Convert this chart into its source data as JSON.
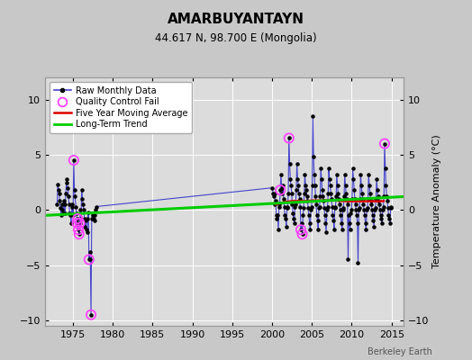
{
  "title": "AMARBUYANTAYN",
  "subtitle": "44.617 N, 98.700 E (Mongolia)",
  "ylabel": "Temperature Anomaly (°C)",
  "credit": "Berkeley Earth",
  "xlim": [
    1971.5,
    2016.5
  ],
  "ylim": [
    -10.5,
    12
  ],
  "yticks": [
    -10,
    -5,
    0,
    5,
    10
  ],
  "xticks": [
    1975,
    1980,
    1985,
    1990,
    1995,
    2000,
    2005,
    2010,
    2015
  ],
  "bg_color": "#c8c8c8",
  "plot_bg_color": "#dcdcdc",
  "grid_color": "#ffffff",
  "raw_color": "#4444cc",
  "dot_color": "#000000",
  "qc_color": "#ff44ff",
  "moving_avg_color": "#dd0000",
  "trend_color": "#00cc00",
  "raw_data": [
    [
      1973.04,
      0.5
    ],
    [
      1973.12,
      2.3
    ],
    [
      1973.21,
      1.8
    ],
    [
      1973.29,
      1.5
    ],
    [
      1973.38,
      0.8
    ],
    [
      1973.46,
      0.2
    ],
    [
      1973.54,
      -0.5
    ],
    [
      1973.62,
      0.5
    ],
    [
      1973.71,
      0.0
    ],
    [
      1973.79,
      -0.3
    ],
    [
      1973.88,
      0.8
    ],
    [
      1973.96,
      0.5
    ],
    [
      1974.04,
      -0.3
    ],
    [
      1974.12,
      1.5
    ],
    [
      1974.21,
      2.5
    ],
    [
      1974.29,
      2.8
    ],
    [
      1974.38,
      2.0
    ],
    [
      1974.46,
      1.2
    ],
    [
      1974.54,
      0.5
    ],
    [
      1974.62,
      -0.3
    ],
    [
      1974.71,
      -0.5
    ],
    [
      1974.79,
      -1.2
    ],
    [
      1974.88,
      0.3
    ],
    [
      1974.96,
      0.5
    ],
    [
      1975.04,
      -0.5
    ],
    [
      1975.12,
      4.5
    ],
    [
      1975.21,
      1.8
    ],
    [
      1975.29,
      1.2
    ],
    [
      1975.38,
      0.3
    ],
    [
      1975.46,
      -0.3
    ],
    [
      1975.54,
      -1.2
    ],
    [
      1975.62,
      -0.8
    ],
    [
      1975.71,
      -1.8
    ],
    [
      1975.79,
      -2.2
    ],
    [
      1975.88,
      -1.2
    ],
    [
      1975.96,
      0.0
    ],
    [
      1976.04,
      -0.8
    ],
    [
      1976.12,
      1.8
    ],
    [
      1976.21,
      1.0
    ],
    [
      1976.29,
      0.5
    ],
    [
      1976.38,
      0.0
    ],
    [
      1976.46,
      -0.8
    ],
    [
      1976.54,
      -1.5
    ],
    [
      1976.62,
      -1.0
    ],
    [
      1976.71,
      -1.8
    ],
    [
      1976.79,
      -2.0
    ],
    [
      1976.88,
      -0.8
    ],
    [
      1976.96,
      -0.2
    ],
    [
      1977.04,
      -4.5
    ],
    [
      1977.12,
      -3.8
    ],
    [
      1977.21,
      -4.5
    ],
    [
      1977.29,
      -9.5
    ],
    [
      1977.38,
      -0.8
    ],
    [
      1977.46,
      -0.5
    ],
    [
      1977.54,
      -0.3
    ],
    [
      1977.62,
      -0.8
    ],
    [
      1977.71,
      -1.0
    ],
    [
      1977.79,
      -0.5
    ],
    [
      1977.88,
      0.0
    ],
    [
      1977.96,
      0.3
    ],
    [
      2000.04,
      2.0
    ],
    [
      2000.12,
      1.5
    ],
    [
      2000.21,
      1.2
    ],
    [
      2000.29,
      1.5
    ],
    [
      2000.38,
      0.5
    ],
    [
      2000.46,
      0.8
    ],
    [
      2000.54,
      -0.5
    ],
    [
      2000.62,
      -0.8
    ],
    [
      2000.71,
      -0.5
    ],
    [
      2000.79,
      -1.8
    ],
    [
      2000.88,
      0.3
    ],
    [
      2000.96,
      0.5
    ],
    [
      2001.04,
      1.8
    ],
    [
      2001.12,
      3.2
    ],
    [
      2001.21,
      2.0
    ],
    [
      2001.29,
      1.5
    ],
    [
      2001.38,
      2.2
    ],
    [
      2001.46,
      1.0
    ],
    [
      2001.54,
      0.3
    ],
    [
      2001.62,
      -0.5
    ],
    [
      2001.71,
      -0.8
    ],
    [
      2001.79,
      -1.5
    ],
    [
      2001.88,
      0.2
    ],
    [
      2001.96,
      0.3
    ],
    [
      2002.04,
      1.5
    ],
    [
      2002.12,
      6.5
    ],
    [
      2002.21,
      4.2
    ],
    [
      2002.29,
      2.8
    ],
    [
      2002.38,
      2.2
    ],
    [
      2002.46,
      1.5
    ],
    [
      2002.54,
      0.5
    ],
    [
      2002.62,
      -0.3
    ],
    [
      2002.71,
      -0.8
    ],
    [
      2002.79,
      -1.2
    ],
    [
      2002.88,
      0.3
    ],
    [
      2002.96,
      0.5
    ],
    [
      2003.04,
      1.8
    ],
    [
      2003.12,
      4.2
    ],
    [
      2003.21,
      2.8
    ],
    [
      2003.29,
      2.2
    ],
    [
      2003.38,
      1.5
    ],
    [
      2003.46,
      1.0
    ],
    [
      2003.54,
      0.3
    ],
    [
      2003.62,
      -1.8
    ],
    [
      2003.71,
      -1.2
    ],
    [
      2003.79,
      -2.2
    ],
    [
      2003.88,
      -0.5
    ],
    [
      2003.96,
      0.2
    ],
    [
      2004.04,
      1.5
    ],
    [
      2004.12,
      3.2
    ],
    [
      2004.21,
      2.2
    ],
    [
      2004.29,
      1.8
    ],
    [
      2004.38,
      1.2
    ],
    [
      2004.46,
      0.8
    ],
    [
      2004.54,
      0.2
    ],
    [
      2004.62,
      -0.5
    ],
    [
      2004.71,
      -1.2
    ],
    [
      2004.79,
      -1.8
    ],
    [
      2004.88,
      0.0
    ],
    [
      2004.96,
      0.3
    ],
    [
      2005.04,
      2.2
    ],
    [
      2005.12,
      8.5
    ],
    [
      2005.21,
      4.8
    ],
    [
      2005.29,
      3.2
    ],
    [
      2005.38,
      2.2
    ],
    [
      2005.46,
      1.2
    ],
    [
      2005.54,
      0.5
    ],
    [
      2005.62,
      -0.5
    ],
    [
      2005.71,
      -1.0
    ],
    [
      2005.79,
      -1.8
    ],
    [
      2005.88,
      0.2
    ],
    [
      2005.96,
      0.3
    ],
    [
      2006.04,
      1.2
    ],
    [
      2006.12,
      3.8
    ],
    [
      2006.21,
      2.8
    ],
    [
      2006.29,
      1.8
    ],
    [
      2006.38,
      1.2
    ],
    [
      2006.46,
      0.8
    ],
    [
      2006.54,
      0.2
    ],
    [
      2006.62,
      -0.5
    ],
    [
      2006.71,
      -1.2
    ],
    [
      2006.79,
      -2.0
    ],
    [
      2006.88,
      0.0
    ],
    [
      2006.96,
      0.3
    ],
    [
      2007.04,
      1.5
    ],
    [
      2007.12,
      3.8
    ],
    [
      2007.21,
      2.8
    ],
    [
      2007.29,
      2.2
    ],
    [
      2007.38,
      1.5
    ],
    [
      2007.46,
      1.0
    ],
    [
      2007.54,
      0.3
    ],
    [
      2007.62,
      -0.5
    ],
    [
      2007.71,
      -1.0
    ],
    [
      2007.79,
      -1.8
    ],
    [
      2007.88,
      0.2
    ],
    [
      2007.96,
      0.3
    ],
    [
      2008.04,
      1.2
    ],
    [
      2008.12,
      3.2
    ],
    [
      2008.21,
      2.2
    ],
    [
      2008.29,
      1.5
    ],
    [
      2008.38,
      1.0
    ],
    [
      2008.46,
      0.5
    ],
    [
      2008.54,
      0.0
    ],
    [
      2008.62,
      -0.5
    ],
    [
      2008.71,
      -1.2
    ],
    [
      2008.79,
      -1.8
    ],
    [
      2008.88,
      0.0
    ],
    [
      2008.96,
      0.2
    ],
    [
      2009.04,
      1.2
    ],
    [
      2009.12,
      3.2
    ],
    [
      2009.21,
      2.2
    ],
    [
      2009.29,
      1.5
    ],
    [
      2009.38,
      1.0
    ],
    [
      2009.46,
      0.5
    ],
    [
      2009.54,
      -4.5
    ],
    [
      2009.62,
      -0.5
    ],
    [
      2009.71,
      -1.2
    ],
    [
      2009.79,
      -1.8
    ],
    [
      2009.88,
      -0.3
    ],
    [
      2009.96,
      0.0
    ],
    [
      2010.04,
      1.0
    ],
    [
      2010.12,
      3.8
    ],
    [
      2010.21,
      2.8
    ],
    [
      2010.29,
      1.8
    ],
    [
      2010.38,
      1.0
    ],
    [
      2010.46,
      0.5
    ],
    [
      2010.54,
      0.0
    ],
    [
      2010.62,
      -0.5
    ],
    [
      2010.71,
      -1.2
    ],
    [
      2010.79,
      -4.8
    ],
    [
      2010.88,
      0.0
    ],
    [
      2010.96,
      0.2
    ],
    [
      2011.04,
      1.0
    ],
    [
      2011.12,
      3.2
    ],
    [
      2011.21,
      2.2
    ],
    [
      2011.29,
      1.5
    ],
    [
      2011.38,
      1.0
    ],
    [
      2011.46,
      0.5
    ],
    [
      2011.54,
      0.0
    ],
    [
      2011.62,
      -0.5
    ],
    [
      2011.71,
      -1.2
    ],
    [
      2011.79,
      -1.8
    ],
    [
      2011.88,
      0.0
    ],
    [
      2011.96,
      0.2
    ],
    [
      2012.04,
      1.0
    ],
    [
      2012.12,
      3.2
    ],
    [
      2012.21,
      2.2
    ],
    [
      2012.29,
      1.5
    ],
    [
      2012.38,
      0.8
    ],
    [
      2012.46,
      0.5
    ],
    [
      2012.54,
      0.0
    ],
    [
      2012.62,
      -0.5
    ],
    [
      2012.71,
      -1.0
    ],
    [
      2012.79,
      -1.5
    ],
    [
      2012.88,
      0.0
    ],
    [
      2012.96,
      0.2
    ],
    [
      2013.04,
      1.0
    ],
    [
      2013.12,
      2.8
    ],
    [
      2013.21,
      1.8
    ],
    [
      2013.29,
      1.2
    ],
    [
      2013.38,
      0.8
    ],
    [
      2013.46,
      0.5
    ],
    [
      2013.54,
      0.0
    ],
    [
      2013.62,
      -0.5
    ],
    [
      2013.71,
      -0.8
    ],
    [
      2013.79,
      -1.2
    ],
    [
      2013.88,
      0.0
    ],
    [
      2013.96,
      0.3
    ],
    [
      2014.04,
      1.2
    ],
    [
      2014.12,
      6.0
    ],
    [
      2014.21,
      3.8
    ],
    [
      2014.29,
      2.2
    ],
    [
      2014.38,
      1.2
    ],
    [
      2014.46,
      0.8
    ],
    [
      2014.54,
      0.2
    ],
    [
      2014.62,
      -0.5
    ],
    [
      2014.71,
      -0.8
    ],
    [
      2014.79,
      -1.2
    ],
    [
      2014.88,
      0.2
    ],
    [
      2014.96,
      0.3
    ]
  ],
  "qc_fail_points": [
    [
      1975.12,
      4.5
    ],
    [
      1975.54,
      -1.2
    ],
    [
      1975.62,
      -0.8
    ],
    [
      1975.71,
      -1.8
    ],
    [
      1975.79,
      -2.2
    ],
    [
      1975.88,
      -1.2
    ],
    [
      1977.29,
      -9.5
    ],
    [
      1977.04,
      -4.5
    ],
    [
      2001.04,
      1.8
    ],
    [
      2002.12,
      6.5
    ],
    [
      2003.62,
      -1.8
    ],
    [
      2003.79,
      -2.2
    ],
    [
      2014.12,
      6.0
    ]
  ],
  "moving_avg_x": [
    2000.5,
    2001.0,
    2001.5,
    2002.0,
    2002.5,
    2003.0,
    2003.5,
    2004.0,
    2004.5,
    2005.0,
    2005.5,
    2006.0,
    2006.5,
    2007.0,
    2007.5,
    2008.0,
    2008.5,
    2009.0,
    2009.5,
    2010.0,
    2010.5,
    2011.0,
    2011.5,
    2012.0,
    2012.5,
    2013.0,
    2013.5,
    2014.0
  ],
  "moving_avg_y": [
    0.5,
    0.6,
    0.7,
    0.75,
    0.8,
    0.8,
    0.8,
    0.8,
    0.8,
    0.85,
    0.85,
    0.85,
    0.85,
    0.85,
    0.85,
    0.85,
    0.8,
    0.8,
    0.78,
    0.78,
    0.78,
    0.78,
    0.78,
    0.78,
    0.78,
    0.78,
    0.78,
    0.8
  ],
  "trend_x": [
    1971.5,
    2016.5
  ],
  "trend_y": [
    -0.5,
    1.2
  ]
}
